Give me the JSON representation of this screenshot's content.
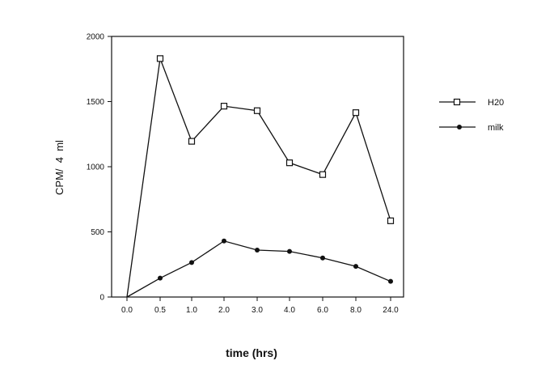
{
  "chart_data": {
    "type": "line",
    "title": "",
    "xlabel": "time (hrs)",
    "ylabel": "CPM/  4  ml",
    "categories": [
      "0.0",
      "0.5",
      "1.0",
      "2.0",
      "3.0",
      "4.0",
      "6.0",
      "8.0",
      "24.0"
    ],
    "ylim": [
      0,
      2000
    ],
    "yticks": [
      "0",
      "500",
      "1000",
      "1500",
      "2000"
    ],
    "grid": false,
    "legend_position": "right",
    "series": [
      {
        "name": "H20",
        "marker": "open-square",
        "values": [
          0,
          1830,
          1195,
          1465,
          1430,
          1030,
          940,
          1415,
          585
        ]
      },
      {
        "name": "milk",
        "marker": "filled-circle",
        "values": [
          0,
          145,
          265,
          430,
          360,
          350,
          300,
          235,
          120
        ]
      }
    ]
  }
}
